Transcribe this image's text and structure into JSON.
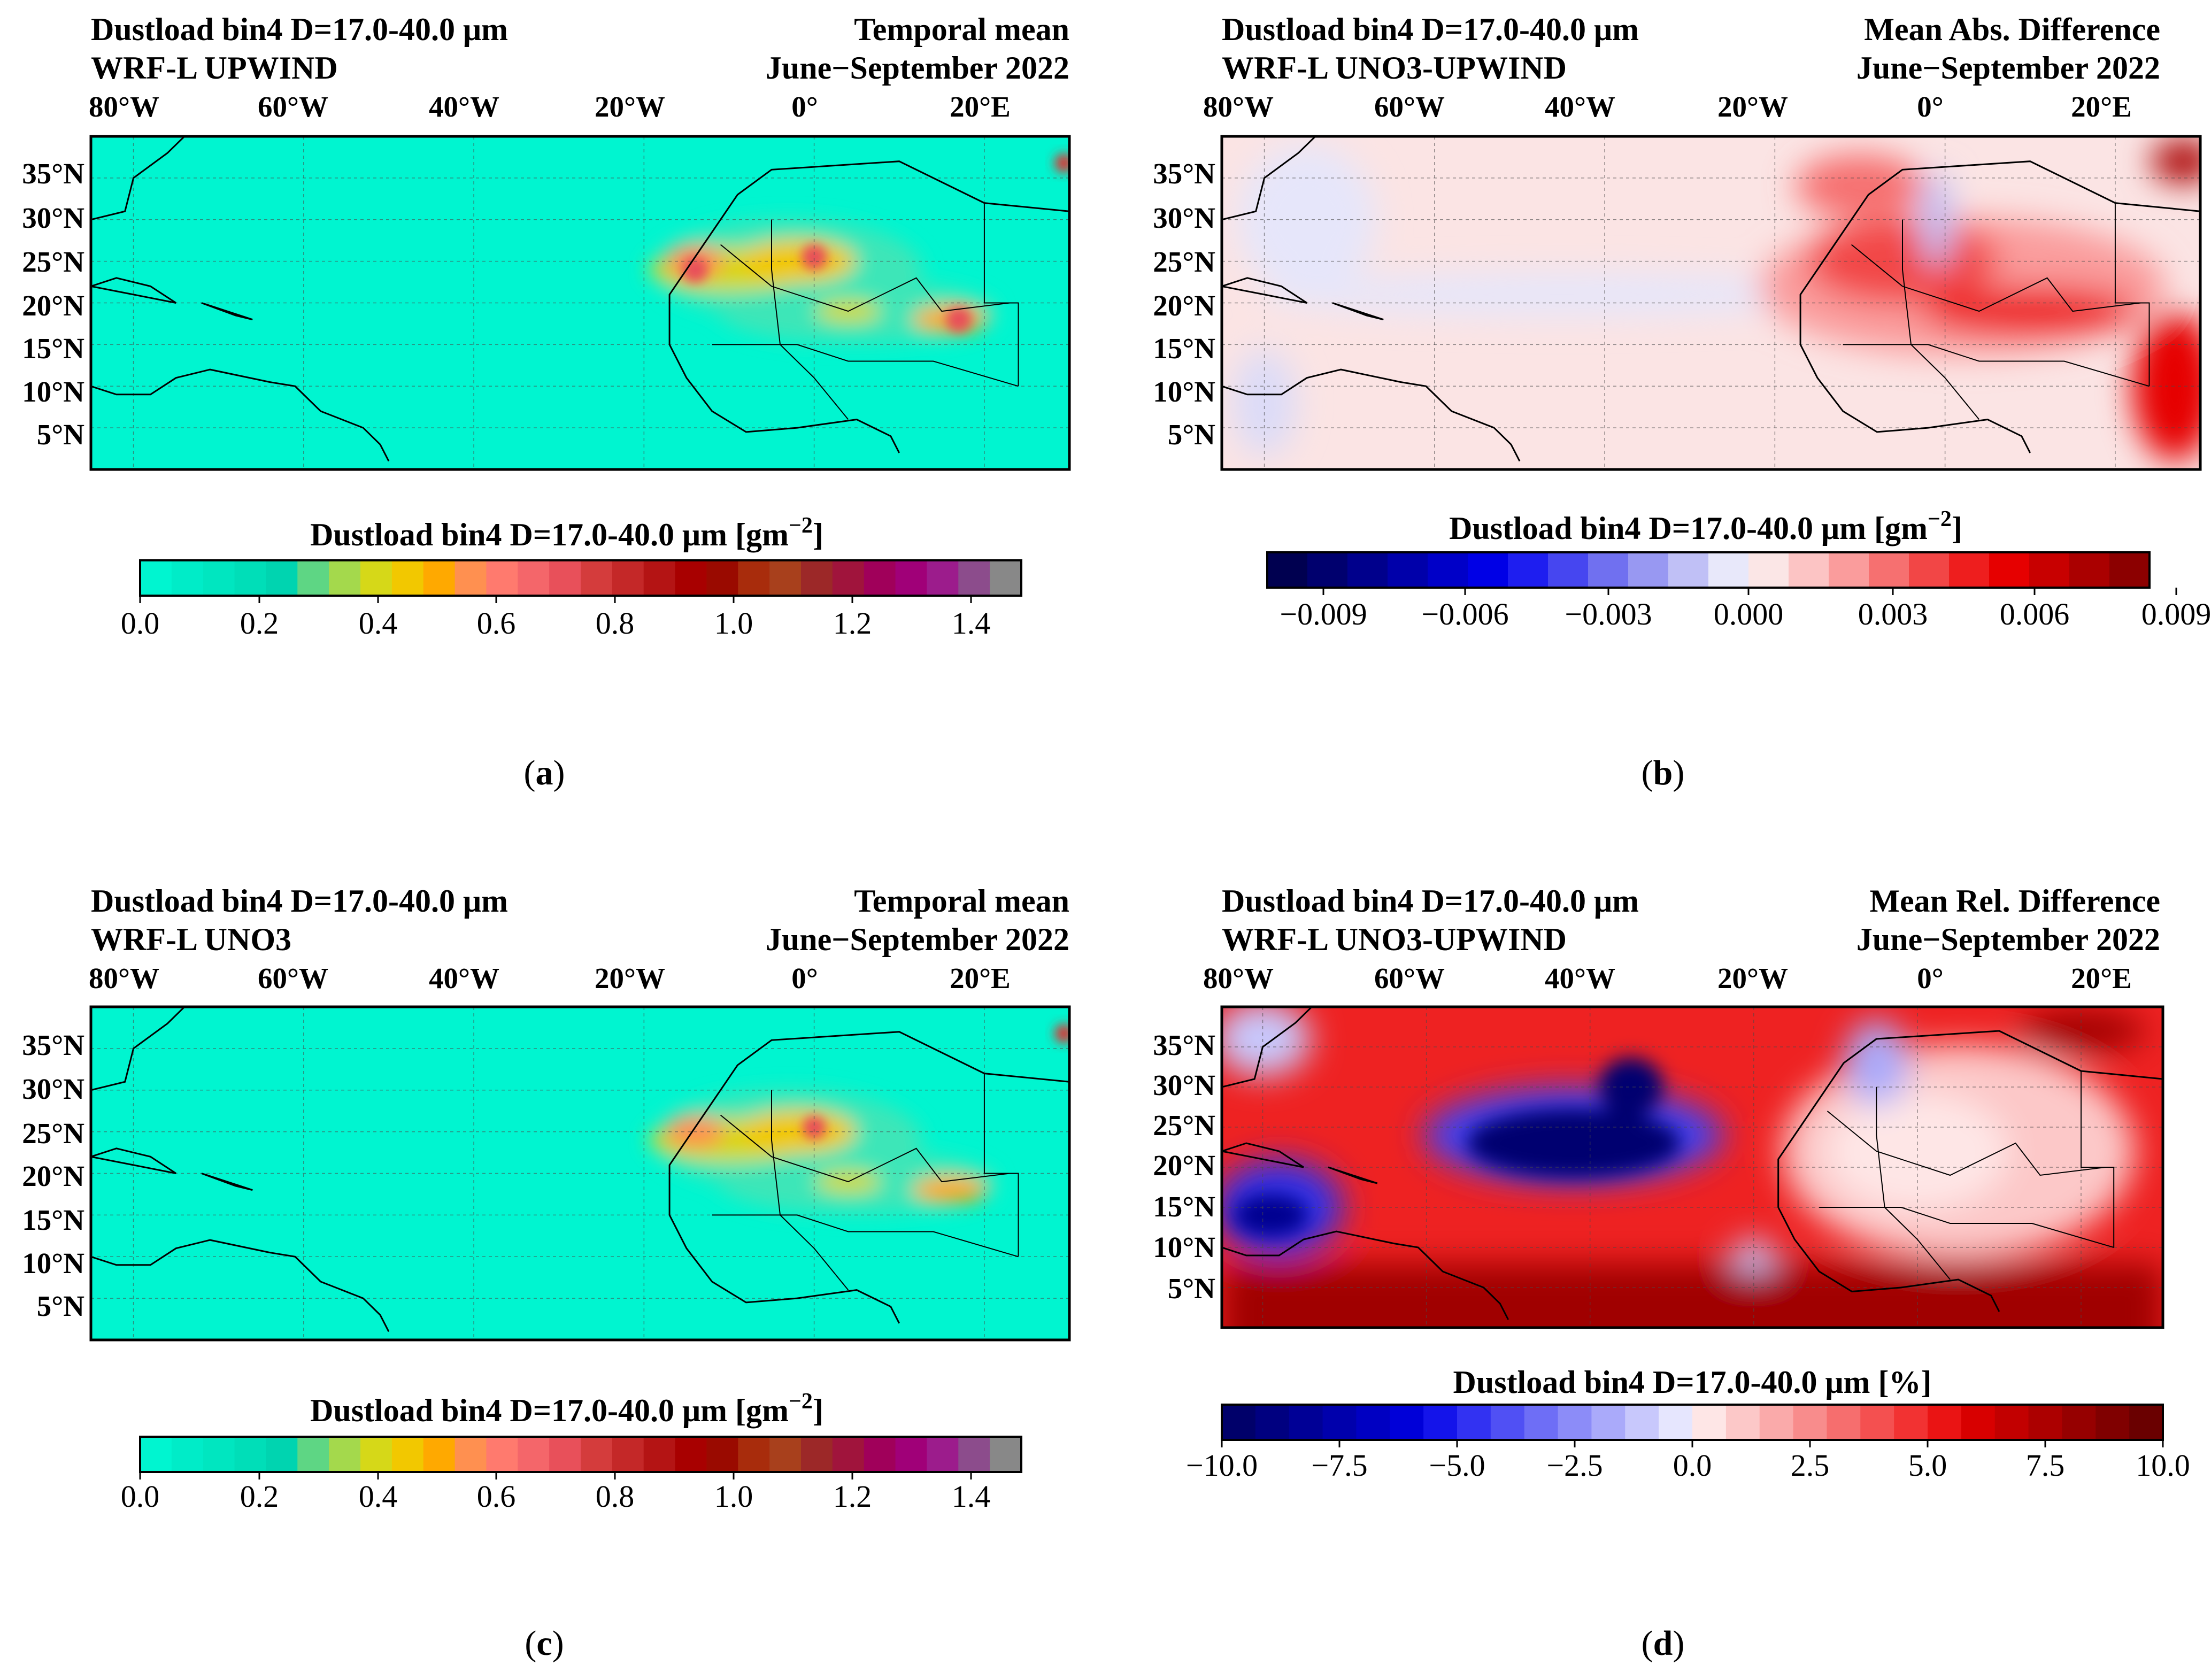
{
  "figure": {
    "panels": [
      {
        "id": "a",
        "caption": "a",
        "title_left_1": "Dustload bin4 D=17.0-40.0 μm",
        "title_left_2": "WRF-L UPWIND",
        "title_right_1": "Temporal mean",
        "title_right_2": "June−September 2022",
        "lon_ticks": [
          "80°W",
          "60°W",
          "40°W",
          "20°W",
          "0°",
          "20°E"
        ],
        "lat_ticks": [
          "35°N",
          "30°N",
          "25°N",
          "20°N",
          "15°N",
          "10°N",
          "5°N"
        ],
        "colorbar_label": "Dustload bin4 D=17.0-40.0 μm [gm",
        "colorbar_label_exp": "−2",
        "colorbar_label_close": "]",
        "colorbar_ticks": [
          "0.0",
          "0.2",
          "0.4",
          "0.6",
          "0.8",
          "1.0",
          "1.2",
          "1.4"
        ],
        "colorbar_colors": [
          "#00f5d0",
          "#00ecc8",
          "#00e6c0",
          "#00deb8",
          "#00d4b0",
          "#5ed684",
          "#a4d94c",
          "#d6d818",
          "#f2c800",
          "#ffa900",
          "#ff9050",
          "#ff7a6e",
          "#f4666a",
          "#e8505a",
          "#d43c3c",
          "#c42828",
          "#b41414",
          "#a80000",
          "#9a0a00",
          "#a82c0c",
          "#a8401c",
          "#9c2828",
          "#a0143c",
          "#a0005a",
          "#a00078",
          "#9c1c8c",
          "#8c4c8c",
          "#888888"
        ]
      },
      {
        "id": "b",
        "caption": "b",
        "title_left_1": "Dustload bin4 D=17.0-40.0 μm",
        "title_left_2": "WRF-L UNO3-UPWIND",
        "title_right_1": "Mean Abs. Difference",
        "title_right_2": "June−September 2022",
        "lon_ticks": [
          "80°W",
          "60°W",
          "40°W",
          "20°W",
          "0°",
          "20°E"
        ],
        "lat_ticks": [
          "35°N",
          "30°N",
          "25°N",
          "20°N",
          "15°N",
          "10°N",
          "5°N"
        ],
        "colorbar_label": "Dustload bin4 D=17.0-40.0 μm [gm",
        "colorbar_label_exp": "−2",
        "colorbar_label_close": "]",
        "colorbar_ticks": [
          "−0.009",
          "−0.006",
          "−0.003",
          "0.000",
          "0.003",
          "0.006",
          "0.009"
        ],
        "colorbar_colors": [
          "#000050",
          "#00006e",
          "#00008c",
          "#0000aa",
          "#0000c8",
          "#0000e6",
          "#1e1ef0",
          "#4646f0",
          "#7070f0",
          "#9898f2",
          "#c0c0f6",
          "#e8e8fa",
          "#fbe6e6",
          "#fcc4c4",
          "#fa9c9c",
          "#f67070",
          "#f24646",
          "#ee1e1e",
          "#e60000",
          "#c80000",
          "#aa0000",
          "#8c0000"
        ]
      },
      {
        "id": "c",
        "caption": "c",
        "title_left_1": "Dustload bin4 D=17.0-40.0 μm",
        "title_left_2": "WRF-L UNO3",
        "title_right_1": "Temporal mean",
        "title_right_2": "June−September 2022",
        "lon_ticks": [
          "80°W",
          "60°W",
          "40°W",
          "20°W",
          "0°",
          "20°E"
        ],
        "lat_ticks": [
          "35°N",
          "30°N",
          "25°N",
          "20°N",
          "15°N",
          "10°N",
          "5°N"
        ],
        "colorbar_label": "Dustload bin4 D=17.0-40.0 μm [gm",
        "colorbar_label_exp": "−2",
        "colorbar_label_close": "]",
        "colorbar_ticks": [
          "0.0",
          "0.2",
          "0.4",
          "0.6",
          "0.8",
          "1.0",
          "1.2",
          "1.4"
        ],
        "colorbar_colors": [
          "#00f5d0",
          "#00ecc8",
          "#00e6c0",
          "#00deb8",
          "#00d4b0",
          "#5ed684",
          "#a4d94c",
          "#d6d818",
          "#f2c800",
          "#ffa900",
          "#ff9050",
          "#ff7a6e",
          "#f4666a",
          "#e8505a",
          "#d43c3c",
          "#c42828",
          "#b41414",
          "#a80000",
          "#9a0a00",
          "#a82c0c",
          "#a8401c",
          "#9c2828",
          "#a0143c",
          "#a0005a",
          "#a00078",
          "#9c1c8c",
          "#8c4c8c",
          "#888888"
        ]
      },
      {
        "id": "d",
        "caption": "d",
        "title_left_1": "Dustload bin4 D=17.0-40.0 μm",
        "title_left_2": "WRF-L UNO3-UPWIND",
        "title_right_1": "Mean Rel. Difference",
        "title_right_2": "June−September 2022",
        "lon_ticks": [
          "80°W",
          "60°W",
          "40°W",
          "20°W",
          "0°",
          "20°E"
        ],
        "lat_ticks": [
          "35°N",
          "30°N",
          "25°N",
          "20°N",
          "15°N",
          "10°N",
          "5°N"
        ],
        "colorbar_label": "Dustload bin4 D=17.0-40.0 μm [%]",
        "colorbar_label_exp": "",
        "colorbar_label_close": "",
        "colorbar_ticks": [
          "−10.0",
          "−7.5",
          "−5.0",
          "−2.5",
          "0.0",
          "2.5",
          "5.0",
          "7.5",
          "10.0"
        ],
        "colorbar_colors": [
          "#00006a",
          "#000080",
          "#000096",
          "#0000ac",
          "#0000c2",
          "#0000d8",
          "#1414ea",
          "#3232f2",
          "#5050f4",
          "#6e6ef6",
          "#8c8cf8",
          "#aaaafa",
          "#c8c8fc",
          "#e6e6fe",
          "#fee6e6",
          "#fcc8c8",
          "#faaaaa",
          "#f88c8c",
          "#f66e6e",
          "#f45050",
          "#f23232",
          "#ea1414",
          "#d80000",
          "#c20000",
          "#ac0000",
          "#960000",
          "#800000",
          "#6a0000"
        ]
      }
    ]
  },
  "chart_data": [
    {
      "type": "heatmap",
      "panel": "a",
      "title": "Dustload bin4 D=17.0-40.0 μm — WRF-L UPWIND — Temporal mean, June−September 2022",
      "xlabel": "",
      "ylabel": "",
      "x_ticks": [
        "80°W",
        "60°W",
        "40°W",
        "20°W",
        "0°",
        "20°E"
      ],
      "y_ticks": [
        "35°N",
        "30°N",
        "25°N",
        "20°N",
        "15°N",
        "10°N",
        "5°N"
      ],
      "colorbar": {
        "label": "Dustload bin4 D=17.0-40.0 μm [gm−2]",
        "range": [
          0.0,
          1.5
        ],
        "ticks": [
          0.0,
          0.2,
          0.4,
          0.6,
          0.8,
          1.0,
          1.2,
          1.4
        ]
      },
      "background_value": 0.0,
      "hotspots": [
        {
          "lon": 0,
          "lat": 25.5,
          "value": 0.55
        },
        {
          "lon": -14,
          "lat": 24,
          "value": 0.35
        },
        {
          "lon": 17,
          "lat": 18,
          "value": 0.4
        }
      ]
    },
    {
      "type": "heatmap",
      "panel": "b",
      "title": "Dustload bin4 D=17.0-40.0 μm — WRF-L UNO3-UPWIND — Mean Abs. Difference, June−September 2022",
      "xlabel": "",
      "ylabel": "",
      "x_ticks": [
        "80°W",
        "60°W",
        "40°W",
        "20°W",
        "0°",
        "20°E"
      ],
      "y_ticks": [
        "35°N",
        "30°N",
        "25°N",
        "20°N",
        "15°N",
        "10°N",
        "5°N"
      ],
      "colorbar": {
        "label": "Dustload bin4 D=17.0-40.0 μm [gm−2]",
        "range": [
          -0.01,
          0.01
        ],
        "ticks": [
          -0.009,
          -0.006,
          -0.003,
          0.0,
          0.003,
          0.006,
          0.009
        ]
      },
      "background_value": 0.0005
    },
    {
      "type": "heatmap",
      "panel": "c",
      "title": "Dustload bin4 D=17.0-40.0 μm — WRF-L UNO3 — Temporal mean, June−September 2022",
      "xlabel": "",
      "ylabel": "",
      "x_ticks": [
        "80°W",
        "60°W",
        "40°W",
        "20°W",
        "0°",
        "20°E"
      ],
      "y_ticks": [
        "35°N",
        "30°N",
        "25°N",
        "20°N",
        "15°N",
        "10°N",
        "5°N"
      ],
      "colorbar": {
        "label": "Dustload bin4 D=17.0-40.0 μm [gm−2]",
        "range": [
          0.0,
          1.5
        ],
        "ticks": [
          0.0,
          0.2,
          0.4,
          0.6,
          0.8,
          1.0,
          1.2,
          1.4
        ]
      },
      "background_value": 0.0
    },
    {
      "type": "heatmap",
      "panel": "d",
      "title": "Dustload bin4 D=17.0-40.0 μm — WRF-L UNO3-UPWIND — Mean Rel. Difference, June−September 2022",
      "xlabel": "",
      "ylabel": "",
      "x_ticks": [
        "80°W",
        "60°W",
        "40°W",
        "20°W",
        "0°",
        "20°E"
      ],
      "y_ticks": [
        "35°N",
        "30°N",
        "25°N",
        "20°N",
        "15°N",
        "10°N",
        "5°N"
      ],
      "colorbar": {
        "label": "Dustload bin4 D=17.0-40.0 μm [%]",
        "range": [
          -10.0,
          10.0
        ],
        "ticks": [
          -10.0,
          -7.5,
          -5.0,
          -2.5,
          0.0,
          2.5,
          5.0,
          7.5,
          10.0
        ]
      },
      "background_value": 6.0
    }
  ]
}
